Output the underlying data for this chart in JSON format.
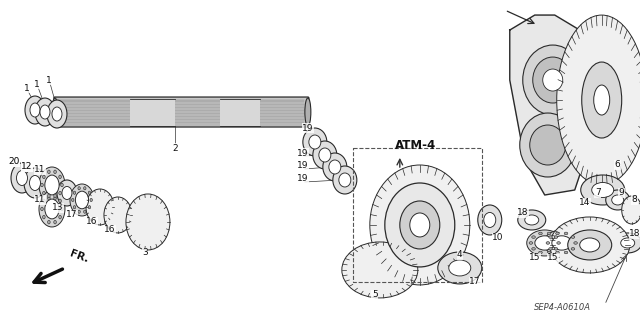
{
  "background_color": "#ffffff",
  "fig_width": 6.4,
  "fig_height": 3.19,
  "dpi": 100,
  "line_color": "#2a2a2a",
  "label_fontsize": 6.5,
  "atm4_text": "ATM-4",
  "sep_text": "SEP4-A0610A",
  "fr_text": "FR."
}
